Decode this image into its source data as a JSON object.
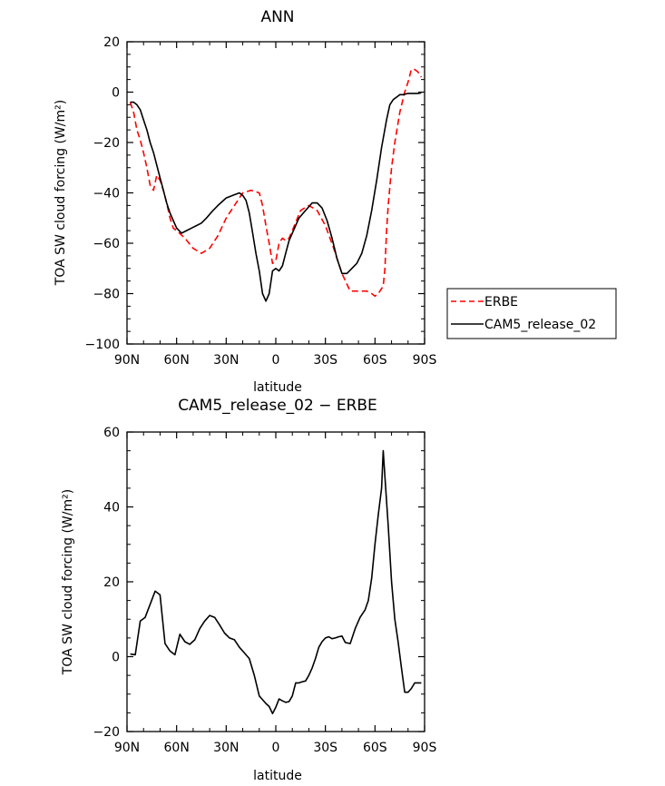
{
  "chart_data": [
    {
      "type": "line",
      "title": "ANN",
      "xlabel": "latitude",
      "ylabel": "TOA SW cloud forcing (W/m²)",
      "xlim": [
        90,
        -90
      ],
      "ylim": [
        -100,
        20
      ],
      "x_ticks": [
        90,
        60,
        30,
        0,
        -30,
        -60,
        -90
      ],
      "x_tick_labels": [
        "90N",
        "60N",
        "30N",
        "0",
        "30S",
        "60S",
        "90S"
      ],
      "y_ticks": [
        20,
        0,
        -20,
        -40,
        -60,
        -80,
        -100
      ],
      "y_tick_labels": [
        "20",
        "0",
        "−20",
        "−40",
        "−60",
        "−80",
        "−100"
      ],
      "legend_placement": "right",
      "series": [
        {
          "name": "ERBE",
          "color": "#ff0000",
          "dash": "dashed",
          "x": [
            88,
            86,
            84,
            82,
            80,
            78,
            76,
            74,
            72,
            70,
            68,
            66,
            64,
            62,
            60,
            55,
            50,
            45,
            40,
            35,
            30,
            25,
            20,
            15,
            10,
            8,
            6,
            4,
            2,
            0,
            -2,
            -4,
            -6,
            -8,
            -10,
            -15,
            -20,
            -25,
            -30,
            -35,
            -40,
            -45,
            -50,
            -55,
            -58,
            -60,
            -62,
            -64,
            -65,
            -66,
            -67,
            -68,
            -70,
            -72,
            -75,
            -78,
            -80,
            -82,
            -84,
            -86,
            -88
          ],
          "y": [
            -4,
            -8,
            -15,
            -19,
            -24,
            -30,
            -37,
            -39,
            -33,
            -35,
            -39,
            -44,
            -50,
            -54,
            -55,
            -58,
            -62,
            -64,
            -62,
            -57,
            -50,
            -45,
            -40,
            -39,
            -40,
            -45,
            -53,
            -60,
            -68,
            -67,
            -60,
            -58,
            -59,
            -58,
            -55,
            -47,
            -45,
            -47,
            -53,
            -62,
            -72,
            -79,
            -79,
            -79,
            -80,
            -81,
            -80,
            -78,
            -77,
            -70,
            -55,
            -45,
            -30,
            -20,
            -8,
            0,
            4,
            9,
            9,
            8,
            6
          ]
        },
        {
          "name": "CAM5_release_02",
          "color": "#000000",
          "dash": "solid",
          "x": [
            88,
            86,
            84,
            82,
            80,
            78,
            76,
            74,
            72,
            70,
            68,
            66,
            64,
            62,
            60,
            57,
            54,
            51,
            48,
            45,
            42,
            38,
            35,
            30,
            26,
            22,
            20,
            18,
            16,
            14,
            12,
            10,
            8,
            6,
            4,
            2,
            0,
            -2,
            -4,
            -6,
            -8,
            -10,
            -14,
            -18,
            -22,
            -25,
            -28,
            -31,
            -34,
            -37,
            -40,
            -43,
            -46,
            -49,
            -52,
            -55,
            -58,
            -61,
            -64,
            -67,
            -69,
            -71,
            -73,
            -75,
            -77,
            -80,
            -83,
            -86,
            -88
          ],
          "y": [
            -4,
            -4,
            -5,
            -7,
            -11,
            -15,
            -20,
            -24,
            -29,
            -34,
            -39,
            -44,
            -48,
            -51,
            -54,
            -56,
            -55,
            -54,
            -53,
            -52,
            -50,
            -47,
            -45,
            -42,
            -41,
            -40,
            -41,
            -43,
            -48,
            -56,
            -64,
            -71,
            -80,
            -83,
            -80,
            -71,
            -70,
            -71,
            -69,
            -64,
            -59,
            -56,
            -50,
            -47,
            -44,
            -44,
            -46,
            -51,
            -58,
            -66,
            -72,
            -72,
            -70,
            -68,
            -64,
            -57,
            -47,
            -35,
            -22,
            -11,
            -5,
            -3,
            -2,
            -1,
            -1,
            -0.5,
            -0.5,
            -0.5,
            -0.3
          ]
        }
      ]
    },
    {
      "type": "line",
      "title": "CAM5_release_02 − ERBE",
      "xlabel": "latitude",
      "ylabel": "TOA SW cloud forcing (W/m²)",
      "xlim": [
        90,
        -90
      ],
      "ylim": [
        -20,
        60
      ],
      "x_ticks": [
        90,
        60,
        30,
        0,
        -30,
        -60,
        -90
      ],
      "x_tick_labels": [
        "90N",
        "60N",
        "30N",
        "0",
        "30S",
        "60S",
        "90S"
      ],
      "y_ticks": [
        60,
        40,
        20,
        0,
        -20
      ],
      "y_tick_labels": [
        "60",
        "40",
        "20",
        "0",
        "−20"
      ],
      "series": [
        {
          "color": "#000000",
          "dash": "solid",
          "x": [
            88,
            85,
            82,
            79,
            76,
            73,
            70,
            67,
            64,
            61,
            58,
            55,
            52,
            49,
            46,
            43,
            40,
            37,
            34,
            31,
            28,
            25,
            22,
            19,
            16,
            13,
            10,
            8,
            6,
            4,
            2,
            0,
            -2,
            -4,
            -6,
            -8,
            -10,
            -12,
            -14,
            -16,
            -18,
            -20,
            -22,
            -24,
            -26,
            -28,
            -30,
            -32,
            -34,
            -36,
            -38,
            -40,
            -42,
            -45,
            -48,
            -51,
            -54,
            -56,
            -58,
            -60,
            -62,
            -64,
            -65,
            -66,
            -68,
            -70,
            -72,
            -74,
            -76,
            -78,
            -80,
            -82,
            -84,
            -86,
            -88
          ],
          "y": [
            0.7,
            0.5,
            9.5,
            10.5,
            14,
            17.5,
            16.5,
            3.5,
            1.5,
            0.5,
            6,
            4,
            3.3,
            4.5,
            7.5,
            9.5,
            11,
            10.5,
            8.5,
            6.3,
            5,
            4.5,
            2.5,
            1,
            -0.5,
            -5,
            -10.5,
            -11.5,
            -12.5,
            -13.3,
            -15.2,
            -13.5,
            -11.3,
            -11.8,
            -12.2,
            -12,
            -10.5,
            -7,
            -7,
            -6.7,
            -6.5,
            -5,
            -3,
            -0.5,
            2.5,
            4,
            5,
            5.3,
            4.8,
            5,
            5.3,
            5.5,
            3.8,
            3.5,
            7.5,
            10.5,
            12.5,
            15,
            21,
            30,
            38,
            45,
            55,
            48,
            35,
            20,
            10,
            4,
            -3,
            -9.5,
            -9.5,
            -8.5,
            -7,
            -7,
            -7
          ]
        }
      ]
    }
  ]
}
